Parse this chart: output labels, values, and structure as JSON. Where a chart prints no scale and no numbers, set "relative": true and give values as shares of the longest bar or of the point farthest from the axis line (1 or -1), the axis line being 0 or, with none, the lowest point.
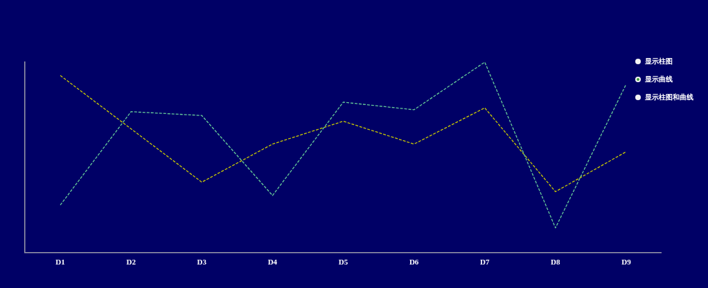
{
  "chart_data": {
    "type": "line",
    "relative": true,
    "categories": [
      "D1",
      "D2",
      "D3",
      "D4",
      "D5",
      "D6",
      "D7",
      "D8",
      "D9"
    ],
    "series": [
      {
        "color": "#66cc99",
        "line_style": "dashed",
        "values": [
          0.25,
          0.74,
          0.72,
          0.3,
          0.79,
          0.75,
          1,
          0.13,
          0.885
        ]
      },
      {
        "color": "#cccc00",
        "line_style": "dashed",
        "values": [
          0.93,
          0.65,
          0.37,
          0.57,
          0.69,
          0.57,
          0.76,
          0.32,
          0.53
        ]
      }
    ],
    "marker": "none",
    "grid": false,
    "legend": false,
    "annotations": [
      "显示柱图",
      "显示曲线",
      "显示柱图和曲线"
    ]
  }
}
